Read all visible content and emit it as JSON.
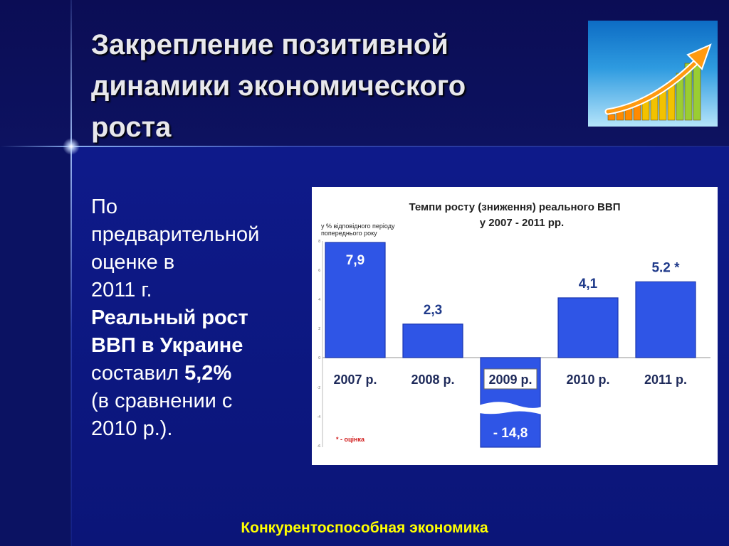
{
  "slide": {
    "title_lines": [
      "Закрепление позитивной",
      "динамики экономического",
      "роста"
    ],
    "body": {
      "line1": "По",
      "line2": "предварительной",
      "line3": "оценке в",
      "line4": "2011 г.",
      "bold1": "Реальный рост",
      "bold2": "ВВП в Украине",
      "line5": "составил ",
      "bold3": "5,2%",
      "line6": "(в сравнении с",
      "line7": "2010 р.)."
    },
    "footer": "Конкурентоспособная экономика"
  },
  "logo": {
    "icon": "growth-chart-arrow-icon",
    "colors": [
      "#ff8a00",
      "#f2c200",
      "#9acd32"
    ]
  },
  "chart_data": {
    "type": "bar",
    "title_line1": "Темпи росту (зниження)  реального  ВВП",
    "title_line2": "у 2007 - 2011 рр.",
    "ylabel_line1": "у % відповідного періоду",
    "ylabel_line2": "попереднього року",
    "categories": [
      "2007 р.",
      "2008 р.",
      "2009 р.",
      "2010 р.",
      "2011 р."
    ],
    "values": [
      7.9,
      2.3,
      -14.8,
      4.1,
      5.2
    ],
    "value_labels": [
      "7,9",
      "2,3",
      "- 14,8",
      "4,1",
      "5.2 *"
    ],
    "axis_break": true,
    "yticks": [
      "8",
      "6",
      "4",
      "2",
      "0",
      "-2",
      "-4",
      "-6"
    ],
    "note": "* - оцінка",
    "colors": {
      "bar": "#2f55e6",
      "bar_edge": "#1a36b0",
      "label": "#1f3a8a",
      "note": "#d01818"
    }
  }
}
